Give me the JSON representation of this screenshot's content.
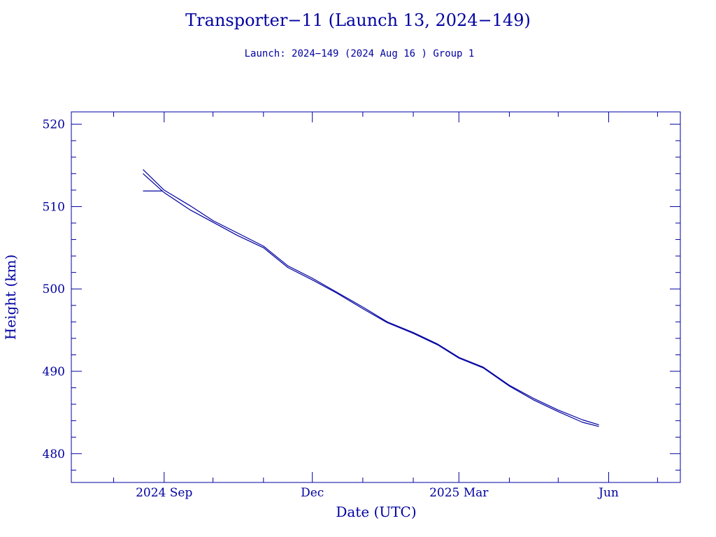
{
  "chart_data": {
    "type": "line",
    "title": "Transporter−11 (Launch 13, 2024−149)",
    "subtitle": "Launch: 2024−149  (2024 Aug 16 )  Group 1",
    "xlabel": "Date (UTC)",
    "ylabel": "Height (km)",
    "ylim": [
      476.5,
      521.5
    ],
    "xlim": [
      "2024-07-06",
      "2025-07-15"
    ],
    "grid": false,
    "x_tick_labels": [
      {
        "date": "2024-09-01",
        "label": "2024 Sep"
      },
      {
        "date": "2024-12-01",
        "label": "Dec"
      },
      {
        "date": "2025-03-01",
        "label": "2025 Mar"
      },
      {
        "date": "2025-06-01",
        "label": "Jun"
      }
    ],
    "y_ticks": [
      480,
      490,
      500,
      510,
      520
    ],
    "colors": {
      "axes": "#0000a0",
      "lines": "#0000a0",
      "background": "#ffffff"
    },
    "series": [
      {
        "x": [
          "2024-08-19",
          "2024-09-01",
          "2024-09-17",
          "2024-10-01",
          "2024-10-16",
          "2024-11-01",
          "2024-11-16",
          "2024-12-01",
          "2024-12-16",
          "2025-01-01",
          "2025-01-16",
          "2025-02-01",
          "2025-02-16",
          "2025-03-01",
          "2025-03-16",
          "2025-04-01",
          "2025-04-16",
          "2025-05-01",
          "2025-05-16",
          "2025-05-26"
        ],
        "y": [
          514.5,
          512.0,
          510.1,
          508.3,
          506.8,
          505.2,
          502.8,
          501.3,
          499.6,
          497.8,
          496.0,
          494.7,
          493.3,
          491.7,
          490.5,
          488.3,
          486.7,
          485.3,
          484.1,
          483.5
        ]
      },
      {
        "x": [
          "2024-08-19",
          "2024-09-01",
          "2024-09-17",
          "2024-10-01",
          "2024-10-16",
          "2024-11-01",
          "2024-11-16",
          "2024-12-01",
          "2024-12-16",
          "2025-01-01",
          "2025-01-16",
          "2025-02-01",
          "2025-02-16",
          "2025-03-01",
          "2025-03-16",
          "2025-04-01",
          "2025-04-16",
          "2025-05-01",
          "2025-05-16",
          "2025-05-26"
        ],
        "y": [
          514.0,
          511.7,
          509.6,
          508.1,
          506.5,
          505.0,
          502.6,
          501.1,
          499.5,
          497.6,
          495.9,
          494.6,
          493.2,
          491.6,
          490.4,
          488.2,
          486.5,
          485.1,
          483.8,
          483.3
        ]
      },
      {
        "x": [
          "2024-08-19",
          "2024-08-31"
        ],
        "y": [
          511.9,
          511.9
        ]
      }
    ]
  }
}
